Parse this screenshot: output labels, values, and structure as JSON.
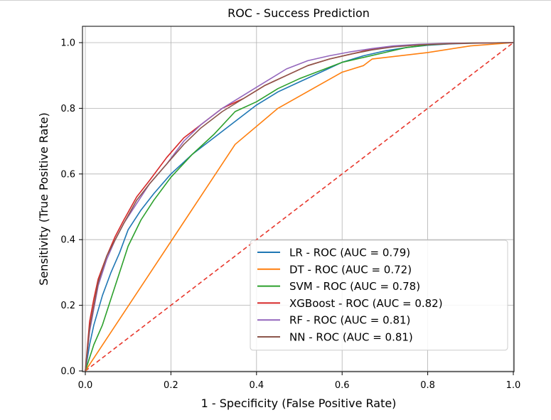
{
  "chart_data": {
    "type": "line",
    "title": "ROC - Success Prediction",
    "xlabel": "1 - Specificity (False Positive Rate)",
    "ylabel": "Sensitivity (True Positive Rate)",
    "xlim": [
      0,
      1
    ],
    "ylim": [
      0,
      1
    ],
    "grid": true,
    "legend_position": "lower-right",
    "x_ticks": [
      "0.0",
      "0.2",
      "0.4",
      "0.6",
      "0.8",
      "1.0"
    ],
    "y_ticks": [
      "0.0",
      "0.2",
      "0.4",
      "0.6",
      "0.8",
      "1.0"
    ],
    "series": [
      {
        "name": "LR - ROC (AUC = 0.79)",
        "color": "#1f77b4",
        "dash": "solid",
        "x": [
          0,
          0.01,
          0.02,
          0.04,
          0.06,
          0.08,
          0.1,
          0.13,
          0.16,
          0.2,
          0.25,
          0.3,
          0.35,
          0.4,
          0.45,
          0.5,
          0.55,
          0.6,
          0.65,
          0.7,
          0.75,
          0.8,
          0.85,
          0.9,
          0.95,
          1.0
        ],
        "y": [
          0,
          0.08,
          0.14,
          0.23,
          0.3,
          0.36,
          0.43,
          0.49,
          0.54,
          0.6,
          0.66,
          0.71,
          0.76,
          0.81,
          0.85,
          0.88,
          0.91,
          0.94,
          0.96,
          0.975,
          0.985,
          0.992,
          0.996,
          0.998,
          0.999,
          1.0
        ]
      },
      {
        "name": "DT - ROC (AUC = 0.72)",
        "color": "#ff7f0e",
        "dash": "solid",
        "x": [
          0,
          0.35,
          0.45,
          0.6,
          0.65,
          0.67,
          0.8,
          0.9,
          1.0
        ],
        "y": [
          0,
          0.69,
          0.8,
          0.91,
          0.93,
          0.95,
          0.97,
          0.99,
          1.0
        ]
      },
      {
        "name": "SVM - ROC (AUC = 0.78)",
        "color": "#2ca02c",
        "dash": "solid",
        "x": [
          0,
          0.01,
          0.02,
          0.04,
          0.06,
          0.08,
          0.1,
          0.13,
          0.16,
          0.2,
          0.25,
          0.3,
          0.35,
          0.4,
          0.45,
          0.5,
          0.55,
          0.6,
          0.65,
          0.7,
          0.75,
          0.8,
          0.85,
          0.9,
          1.0
        ],
        "y": [
          0,
          0.04,
          0.08,
          0.14,
          0.22,
          0.3,
          0.38,
          0.46,
          0.52,
          0.59,
          0.66,
          0.72,
          0.79,
          0.82,
          0.86,
          0.89,
          0.915,
          0.94,
          0.955,
          0.97,
          0.985,
          0.993,
          0.997,
          0.999,
          1.0
        ]
      },
      {
        "name": "XGBoost - ROC (AUC = 0.82)",
        "color": "#d62728",
        "dash": "solid",
        "x": [
          0,
          0.01,
          0.02,
          0.03,
          0.05,
          0.07,
          0.09,
          0.12,
          0.15,
          0.19,
          0.23,
          0.27,
          0.32,
          0.37,
          0.42,
          0.47,
          0.52,
          0.57,
          0.62,
          0.67,
          0.72,
          0.78,
          0.85,
          0.92,
          1.0
        ],
        "y": [
          0,
          0.15,
          0.22,
          0.28,
          0.35,
          0.41,
          0.46,
          0.53,
          0.58,
          0.65,
          0.71,
          0.75,
          0.8,
          0.83,
          0.87,
          0.9,
          0.93,
          0.95,
          0.965,
          0.98,
          0.988,
          0.994,
          0.997,
          0.999,
          1.0
        ]
      },
      {
        "name": "RF - ROC (AUC = 0.81)",
        "color": "#9467bd",
        "dash": "solid",
        "x": [
          0,
          0.01,
          0.02,
          0.03,
          0.05,
          0.07,
          0.09,
          0.12,
          0.15,
          0.19,
          0.23,
          0.27,
          0.32,
          0.37,
          0.42,
          0.47,
          0.52,
          0.57,
          0.62,
          0.67,
          0.72,
          0.78,
          0.85,
          0.92,
          1.0
        ],
        "y": [
          0,
          0.12,
          0.19,
          0.26,
          0.34,
          0.4,
          0.45,
          0.51,
          0.57,
          0.63,
          0.7,
          0.75,
          0.8,
          0.84,
          0.88,
          0.92,
          0.945,
          0.96,
          0.972,
          0.982,
          0.99,
          0.995,
          0.998,
          0.999,
          1.0
        ]
      },
      {
        "name": "NN - ROC (AUC = 0.81)",
        "color": "#8c564b",
        "dash": "solid",
        "x": [
          0,
          0.01,
          0.02,
          0.03,
          0.05,
          0.07,
          0.09,
          0.12,
          0.15,
          0.19,
          0.23,
          0.27,
          0.32,
          0.37,
          0.42,
          0.47,
          0.52,
          0.57,
          0.62,
          0.67,
          0.72,
          0.78,
          0.85,
          0.92,
          1.0
        ],
        "y": [
          0,
          0.13,
          0.2,
          0.27,
          0.35,
          0.4,
          0.45,
          0.52,
          0.57,
          0.63,
          0.69,
          0.74,
          0.79,
          0.83,
          0.87,
          0.9,
          0.93,
          0.95,
          0.965,
          0.978,
          0.987,
          0.993,
          0.997,
          0.999,
          1.0
        ]
      },
      {
        "name": "",
        "color": "#e8372c",
        "dash": "dashed",
        "x": [
          0,
          1
        ],
        "y": [
          0,
          1
        ]
      }
    ]
  }
}
